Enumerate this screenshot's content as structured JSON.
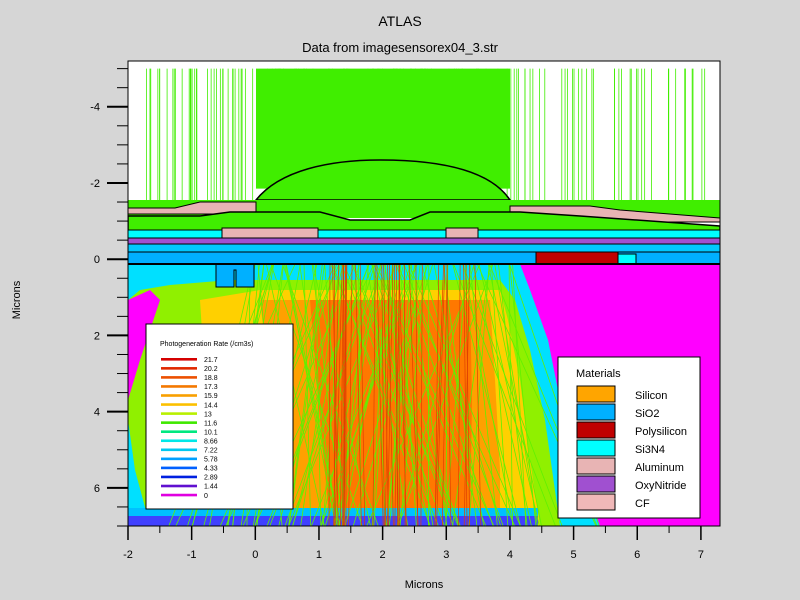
{
  "chart_data": {
    "type": "heatmap",
    "title": "ATLAS",
    "subtitle": "Data from imagesensorex04_3.str",
    "xlabel": "Microns",
    "ylabel": "Microns",
    "xlim": [
      -2,
      7.3
    ],
    "ylim": [
      -5.2,
      7.0
    ],
    "y_inverted": true,
    "x_ticks": [
      "-2",
      "-1",
      "0",
      "1",
      "2",
      "3",
      "4",
      "5",
      "6",
      "7"
    ],
    "x_tick_values": [
      -2,
      -1,
      0,
      1,
      2,
      3,
      4,
      5,
      6,
      7
    ],
    "y_ticks": [
      "-4",
      "-2",
      "0",
      "2",
      "4",
      "6"
    ],
    "y_tick_values": [
      -4,
      -2,
      0,
      2,
      4,
      6
    ],
    "contour_legend": {
      "title": "Photogeneration Rate (/cm3s)",
      "levels": [
        "21.7",
        "20.2",
        "18.8",
        "17.3",
        "15.9",
        "14.4",
        "13",
        "11.6",
        "10.1",
        "8.66",
        "7.22",
        "5.78",
        "4.33",
        "2.89",
        "1.44",
        "0"
      ],
      "colors": [
        "#d40000",
        "#e02800",
        "#ec5000",
        "#f47800",
        "#f8a000",
        "#fcc000",
        "#b8f000",
        "#40e800",
        "#00e880",
        "#00e8e8",
        "#00c8f0",
        "#00a0ff",
        "#0060ff",
        "#0020e0",
        "#6010d0",
        "#e000e0"
      ]
    },
    "materials_legend": {
      "title": "Materials",
      "items": [
        {
          "name": "Silicon",
          "color": "#ffa500"
        },
        {
          "name": "SiO2",
          "color": "#00b0ff"
        },
        {
          "name": "Polysilicon",
          "color": "#c00000"
        },
        {
          "name": "Si3N4",
          "color": "#00ffff"
        },
        {
          "name": "Aluminum",
          "color": "#e8b4b4"
        },
        {
          "name": "OxyNitride",
          "color": "#a050d0"
        },
        {
          "name": "CF",
          "color": "#f0b8b8"
        }
      ]
    }
  }
}
